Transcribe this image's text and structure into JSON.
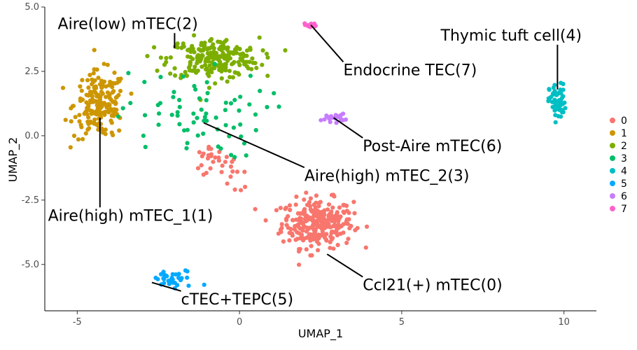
{
  "chart_data": {
    "type": "scatter",
    "title": "",
    "xlabel": "UMAP_1",
    "ylabel": "UMAP_2",
    "xlim": [
      -6,
      11
    ],
    "ylim": [
      -6.8,
      5.0
    ],
    "x_ticks": [
      -5,
      0,
      5,
      10
    ],
    "x_tick_labels": [
      "-5",
      "0",
      "5",
      "10"
    ],
    "y_ticks": [
      -5,
      -2.5,
      0,
      2.5,
      5
    ],
    "y_tick_labels": [
      "-5.0",
      "-2.5",
      "0.0",
      "2.5",
      "5.0"
    ],
    "grid": false,
    "legend_position": "right",
    "clusters": [
      {
        "name": "0",
        "color": "#F8766D",
        "count": 290,
        "center": [
          2.4,
          -3.4
        ],
        "spread": [
          1.1,
          0.95
        ],
        "extra": [
          [
            -0.3,
            -1.4,
            0.5,
            0.4
          ],
          [
            -1.0,
            -0.9,
            0.2,
            0.2
          ]
        ]
      },
      {
        "name": "1",
        "color": "#CD9600",
        "count": 190,
        "center": [
          -4.3,
          1.2
        ],
        "spread": [
          0.8,
          1.3
        ]
      },
      {
        "name": "2",
        "color": "#7CAE00",
        "count": 230,
        "center": [
          -0.8,
          3.0
        ],
        "spread": [
          1.4,
          0.8
        ]
      },
      {
        "name": "3",
        "color": "#00BE67",
        "count": 70,
        "center": [
          -1.5,
          0.8
        ],
        "spread": [
          2.3,
          1.7
        ]
      },
      {
        "name": "4",
        "color": "#00BFC4",
        "count": 60,
        "center": [
          9.8,
          1.3
        ],
        "spread": [
          0.25,
          0.7
        ]
      },
      {
        "name": "5",
        "color": "#00A9FF",
        "count": 35,
        "center": [
          -2.0,
          -5.6
        ],
        "spread": [
          0.8,
          0.4
        ]
      },
      {
        "name": "6",
        "color": "#C77CFF",
        "count": 22,
        "center": [
          2.9,
          0.7
        ],
        "spread": [
          0.35,
          0.15
        ]
      },
      {
        "name": "7",
        "color": "#FF61CC",
        "count": 14,
        "center": [
          2.2,
          4.3
        ],
        "spread": [
          0.2,
          0.1
        ]
      }
    ],
    "annotations": [
      {
        "text": "Aire(low) mTEC(2)",
        "x": -5.6,
        "y": 4.15,
        "point": [
          -2.0,
          3.4
        ]
      },
      {
        "text": "Endocrine TEC(7)",
        "x": 3.2,
        "y": 2.35,
        "point": [
          2.2,
          4.3
        ]
      },
      {
        "text": "Thymic tuft cell(4)",
        "x": 6.2,
        "y": 3.7,
        "point": [
          9.8,
          1.8
        ]
      },
      {
        "text": "Post-Aire mTEC(6)",
        "x": 3.8,
        "y": -0.6,
        "point": [
          2.9,
          0.7
        ]
      },
      {
        "text": "Aire(high) mTEC_2(3)",
        "x": 2.0,
        "y": -1.75,
        "point": [
          -1.1,
          0.5
        ]
      },
      {
        "text": "Aire(high) mTEC_1(1)",
        "x": -5.9,
        "y": -3.3,
        "point": [
          -4.3,
          0.7
        ]
      },
      {
        "text": "Ccl21(+) mTEC(0)",
        "x": 3.8,
        "y": -6.0,
        "point": [
          2.7,
          -4.6
        ]
      },
      {
        "text": "cTEC+TEPC(5)",
        "x": -1.8,
        "y": -6.55,
        "point": [
          -2.7,
          -5.7
        ]
      }
    ]
  }
}
